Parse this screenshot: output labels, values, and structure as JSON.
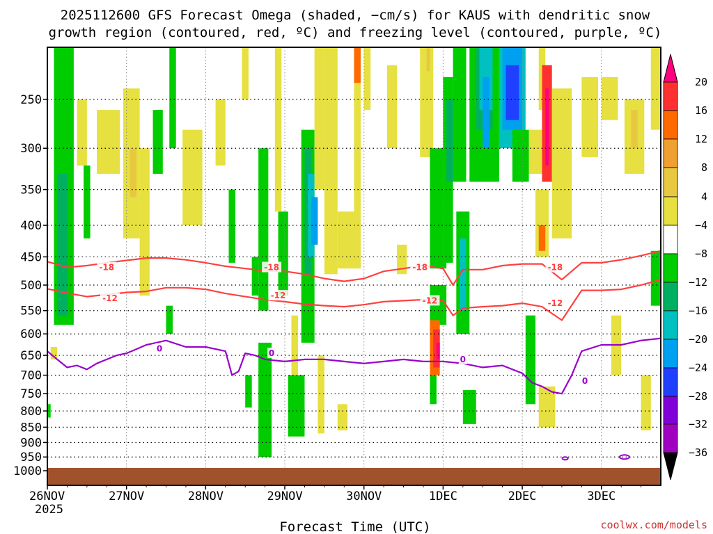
{
  "chart_data": {
    "type": "heatmap",
    "title_line1": "2025112600 GFS Forecast Omega (shaded, −cm/s) for KAUS with dendritic snow",
    "title_line2": "growth region (contoured, red, ºC) and freezing level (contoured, purple, ºC)",
    "xlabel": "Forecast Time (UTC)",
    "credit": "coolwx.com/models",
    "x_ticks": [
      "26NOV",
      "27NOV",
      "28NOV",
      "29NOV",
      "30NOV",
      "1DEC",
      "2DEC",
      "3DEC"
    ],
    "x_tick_year": "2025",
    "x_range_hours": [
      0,
      186
    ],
    "y_ticks": [
      "250",
      "300",
      "350",
      "400",
      "450",
      "500",
      "550",
      "600",
      "650",
      "700",
      "750",
      "800",
      "850",
      "900",
      "950",
      "1000"
    ],
    "y_range_hpa": [
      200,
      1000
    ],
    "colorbar_labels": [
      "20",
      "16",
      "12",
      "8",
      "4",
      "−4",
      "−8",
      "−12",
      "−16",
      "−20",
      "−24",
      "−28",
      "−32",
      "−36"
    ],
    "colorbar_colors": [
      "#ff0080",
      "#ff3030",
      "#ff6a00",
      "#f0a030",
      "#e8c840",
      "#e6e040",
      "#ffffff",
      "#00cc00",
      "#00b060",
      "#00c0c0",
      "#00a0f0",
      "#2040ff",
      "#8000d8",
      "#a000c0",
      "#a8a8a8",
      "#000000"
    ],
    "contours": {
      "minus18": {
        "label": "-18",
        "color": "#ff4040",
        "x": [
          0,
          6,
          12,
          18,
          24,
          30,
          36,
          42,
          48,
          54,
          60,
          66,
          72,
          78,
          84,
          90,
          96,
          102,
          108,
          114,
          120,
          123,
          126,
          132,
          138,
          144,
          150,
          156,
          162,
          168,
          174,
          180,
          186
        ],
        "p": [
          458,
          468,
          465,
          460,
          456,
          452,
          452,
          455,
          460,
          466,
          470,
          474,
          475,
          480,
          488,
          493,
          488,
          475,
          470,
          465,
          470,
          500,
          472,
          472,
          465,
          462,
          462,
          490,
          460,
          460,
          455,
          448,
          440
        ]
      },
      "minus12": {
        "label": "-12",
        "color": "#ff4040",
        "x": [
          0,
          6,
          12,
          18,
          24,
          30,
          36,
          42,
          48,
          54,
          60,
          66,
          72,
          78,
          84,
          90,
          96,
          102,
          108,
          114,
          120,
          123,
          126,
          132,
          138,
          144,
          150,
          156,
          162,
          168,
          174,
          180,
          186
        ],
        "p": [
          507,
          515,
          522,
          518,
          514,
          512,
          505,
          505,
          508,
          516,
          522,
          528,
          532,
          537,
          540,
          542,
          538,
          532,
          530,
          528,
          530,
          560,
          545,
          542,
          540,
          535,
          542,
          570,
          510,
          510,
          508,
          500,
          490
        ]
      },
      "freezing_0": {
        "label": "0",
        "color": "#9900cc",
        "x": [
          0,
          3,
          6,
          9,
          12,
          15,
          18,
          21,
          24,
          27,
          30,
          33,
          36,
          42,
          48,
          54,
          56,
          58,
          60,
          63,
          66,
          72,
          78,
          84,
          90,
          96,
          102,
          108,
          114,
          120,
          126,
          132,
          138,
          144,
          147,
          150,
          153,
          156,
          159,
          162,
          168,
          174,
          180,
          186
        ],
        "p": [
          640,
          660,
          680,
          675,
          685,
          670,
          660,
          650,
          645,
          635,
          625,
          620,
          615,
          630,
          630,
          640,
          700,
          690,
          645,
          650,
          660,
          665,
          660,
          660,
          665,
          670,
          665,
          660,
          665,
          665,
          670,
          680,
          675,
          695,
          720,
          730,
          745,
          750,
          700,
          640,
          625,
          625,
          615,
          610
        ]
      }
    },
    "contour_labels": [
      {
        "text": "-18",
        "x": 18,
        "p": 468,
        "color": "#ff4040"
      },
      {
        "text": "-18",
        "x": 68,
        "p": 468,
        "color": "#ff4040"
      },
      {
        "text": "-18",
        "x": 113,
        "p": 468,
        "color": "#ff4040"
      },
      {
        "text": "-18",
        "x": 154,
        "p": 468,
        "color": "#ff4040"
      },
      {
        "text": "-12",
        "x": 19,
        "p": 525,
        "color": "#ff4040"
      },
      {
        "text": "-12",
        "x": 70,
        "p": 520,
        "color": "#ff4040"
      },
      {
        "text": "-12",
        "x": 116,
        "p": 530,
        "color": "#ff4040"
      },
      {
        "text": "-12",
        "x": 154,
        "p": 535,
        "color": "#ff4040"
      },
      {
        "text": "0",
        "x": 34,
        "p": 634,
        "color": "#9900cc"
      },
      {
        "text": "0",
        "x": 68,
        "p": 645,
        "color": "#9900cc"
      },
      {
        "text": "0",
        "x": 126,
        "p": 660,
        "color": "#9900cc"
      },
      {
        "text": "0",
        "x": 163,
        "p": 715,
        "color": "#9900cc"
      }
    ],
    "shaded_regions": [
      {
        "c": "#00cc00",
        "x0": 2,
        "x1": 8,
        "p0": 200,
        "p1": 580
      },
      {
        "c": "#00b060",
        "x0": 3,
        "x1": 6,
        "p0": 330,
        "p1": 560
      },
      {
        "c": "#e6e040",
        "x0": 1,
        "x1": 3,
        "p0": 630,
        "p1": 660
      },
      {
        "c": "#00cc00",
        "x0": 0,
        "x1": 1,
        "p0": 780,
        "p1": 820
      },
      {
        "c": "#e6e040",
        "x0": 9,
        "x1": 12,
        "p0": 250,
        "p1": 320
      },
      {
        "c": "#00cc00",
        "x0": 11,
        "x1": 13,
        "p0": 320,
        "p1": 420
      },
      {
        "c": "#e6e040",
        "x0": 15,
        "x1": 22,
        "p0": 260,
        "p1": 330
      },
      {
        "c": "#e6e040",
        "x0": 23,
        "x1": 28,
        "p0": 240,
        "p1": 420
      },
      {
        "c": "#e8c840",
        "x0": 25,
        "x1": 27,
        "p0": 300,
        "p1": 360
      },
      {
        "c": "#e6e040",
        "x0": 28,
        "x1": 31,
        "p0": 300,
        "p1": 520
      },
      {
        "c": "#00cc00",
        "x0": 32,
        "x1": 35,
        "p0": 260,
        "p1": 330
      },
      {
        "c": "#00cc00",
        "x0": 37,
        "x1": 39,
        "p0": 200,
        "p1": 300
      },
      {
        "c": "#e6e040",
        "x0": 41,
        "x1": 47,
        "p0": 280,
        "p1": 400
      },
      {
        "c": "#00cc00",
        "x0": 36,
        "x1": 38,
        "p0": 540,
        "p1": 600
      },
      {
        "c": "#e6e040",
        "x0": 51,
        "x1": 54,
        "p0": 250,
        "p1": 320
      },
      {
        "c": "#00cc00",
        "x0": 55,
        "x1": 57,
        "p0": 350,
        "p1": 460
      },
      {
        "c": "#e6e040",
        "x0": 59,
        "x1": 61,
        "p0": 200,
        "p1": 250
      },
      {
        "c": "#00cc00",
        "x0": 60,
        "x1": 62,
        "p0": 700,
        "p1": 790
      },
      {
        "c": "#00cc00",
        "x0": 62,
        "x1": 64,
        "p0": 450,
        "p1": 520
      },
      {
        "c": "#00cc00",
        "x0": 64,
        "x1": 67,
        "p0": 300,
        "p1": 550
      },
      {
        "c": "#00cc00",
        "x0": 64,
        "x1": 68,
        "p0": 620,
        "p1": 950
      },
      {
        "c": "#00cc00",
        "x0": 70,
        "x1": 73,
        "p0": 380,
        "p1": 520
      },
      {
        "c": "#e6e040",
        "x0": 69,
        "x1": 71,
        "p0": 200,
        "p1": 380
      },
      {
        "c": "#e6e040",
        "x0": 74,
        "x1": 76,
        "p0": 560,
        "p1": 700
      },
      {
        "c": "#00cc00",
        "x0": 77,
        "x1": 81,
        "p0": 280,
        "p1": 620
      },
      {
        "c": "#00b060",
        "x0": 78,
        "x1": 80,
        "p0": 300,
        "p1": 480
      },
      {
        "c": "#00c0c0",
        "x0": 79,
        "x1": 81,
        "p0": 330,
        "p1": 450
      },
      {
        "c": "#00a0f0",
        "x0": 80,
        "x1": 82,
        "p0": 360,
        "p1": 430
      },
      {
        "c": "#00cc00",
        "x0": 73,
        "x1": 78,
        "p0": 700,
        "p1": 880
      },
      {
        "c": "#e6e040",
        "x0": 81,
        "x1": 84,
        "p0": 200,
        "p1": 350
      },
      {
        "c": "#e6e040",
        "x0": 84,
        "x1": 88,
        "p0": 200,
        "p1": 480
      },
      {
        "c": "#e6e040",
        "x0": 82,
        "x1": 84,
        "p0": 650,
        "p1": 870
      },
      {
        "c": "#e6e040",
        "x0": 88,
        "x1": 91,
        "p0": 780,
        "p1": 860
      },
      {
        "c": "#e6e040",
        "x0": 88,
        "x1": 93,
        "p0": 380,
        "p1": 470
      },
      {
        "c": "#e6e040",
        "x0": 93,
        "x1": 95,
        "p0": 200,
        "p1": 470
      },
      {
        "c": "#ff6a00",
        "x0": 93,
        "x1": 95,
        "p0": 200,
        "p1": 235
      },
      {
        "c": "#e6e040",
        "x0": 96,
        "x1": 98,
        "p0": 200,
        "p1": 260
      },
      {
        "c": "#e6e040",
        "x0": 103,
        "x1": 106,
        "p0": 220,
        "p1": 300
      },
      {
        "c": "#e6e040",
        "x0": 106,
        "x1": 109,
        "p0": 430,
        "p1": 480
      },
      {
        "c": "#e6e040",
        "x0": 113,
        "x1": 117,
        "p0": 200,
        "p1": 310
      },
      {
        "c": "#e8c840",
        "x0": 115,
        "x1": 116,
        "p0": 200,
        "p1": 225
      },
      {
        "c": "#00cc00",
        "x0": 116,
        "x1": 121,
        "p0": 300,
        "p1": 470
      },
      {
        "c": "#00cc00",
        "x0": 116,
        "x1": 121,
        "p0": 500,
        "p1": 580
      },
      {
        "c": "#ff6a00",
        "x0": 116,
        "x1": 119,
        "p0": 570,
        "p1": 700
      },
      {
        "c": "#ff3030",
        "x0": 117,
        "x1": 119,
        "p0": 590,
        "p1": 680
      },
      {
        "c": "#ff0080",
        "x0": 118,
        "x1": 119,
        "p0": 620,
        "p1": 660
      },
      {
        "c": "#00cc00",
        "x0": 116,
        "x1": 118,
        "p0": 700,
        "p1": 780
      },
      {
        "c": "#00cc00",
        "x0": 120,
        "x1": 123,
        "p0": 230,
        "p1": 460
      },
      {
        "c": "#00b060",
        "x0": 121,
        "x1": 123,
        "p0": 250,
        "p1": 340
      },
      {
        "c": "#00cc00",
        "x0": 123,
        "x1": 127,
        "p0": 200,
        "p1": 340
      },
      {
        "c": "#00cc00",
        "x0": 124,
        "x1": 128,
        "p0": 380,
        "p1": 600
      },
      {
        "c": "#00c0c0",
        "x0": 125,
        "x1": 127,
        "p0": 420,
        "p1": 550
      },
      {
        "c": "#00cc00",
        "x0": 126,
        "x1": 130,
        "p0": 740,
        "p1": 840
      },
      {
        "c": "#00cc00",
        "x0": 128,
        "x1": 137,
        "p0": 200,
        "p1": 340
      },
      {
        "c": "#00b060",
        "x0": 130,
        "x1": 135,
        "p0": 200,
        "p1": 280
      },
      {
        "c": "#00c0c0",
        "x0": 131,
        "x1": 135,
        "p0": 200,
        "p1": 260
      },
      {
        "c": "#00a0f0",
        "x0": 132,
        "x1": 134,
        "p0": 230,
        "p1": 300
      },
      {
        "c": "#00c0c0",
        "x0": 137,
        "x1": 145,
        "p0": 200,
        "p1": 300
      },
      {
        "c": "#00a0f0",
        "x0": 138,
        "x1": 144,
        "p0": 200,
        "p1": 280
      },
      {
        "c": "#2040ff",
        "x0": 139,
        "x1": 143,
        "p0": 220,
        "p1": 270
      },
      {
        "c": "#00cc00",
        "x0": 141,
        "x1": 146,
        "p0": 280,
        "p1": 340
      },
      {
        "c": "#00cc00",
        "x0": 145,
        "x1": 148,
        "p0": 560,
        "p1": 780
      },
      {
        "c": "#e6e040",
        "x0": 146,
        "x1": 150,
        "p0": 280,
        "p1": 330
      },
      {
        "c": "#e6e040",
        "x0": 148,
        "x1": 152,
        "p0": 350,
        "p1": 450
      },
      {
        "c": "#ff6a00",
        "x0": 149,
        "x1": 151,
        "p0": 400,
        "p1": 440
      },
      {
        "c": "#e6e040",
        "x0": 149,
        "x1": 151,
        "p0": 200,
        "p1": 260
      },
      {
        "c": "#ff3030",
        "x0": 150,
        "x1": 153,
        "p0": 220,
        "p1": 340
      },
      {
        "c": "#ff0080",
        "x0": 151,
        "x1": 152,
        "p0": 240,
        "p1": 320
      },
      {
        "c": "#e6e040",
        "x0": 153,
        "x1": 159,
        "p0": 240,
        "p1": 420
      },
      {
        "c": "#e6e040",
        "x0": 149,
        "x1": 154,
        "p0": 730,
        "p1": 850
      },
      {
        "c": "#e6e040",
        "x0": 162,
        "x1": 167,
        "p0": 230,
        "p1": 310
      },
      {
        "c": "#e6e040",
        "x0": 168,
        "x1": 173,
        "p0": 230,
        "p1": 270
      },
      {
        "c": "#e6e040",
        "x0": 175,
        "x1": 181,
        "p0": 250,
        "p1": 330
      },
      {
        "c": "#e8c840",
        "x0": 177,
        "x1": 179,
        "p0": 260,
        "p1": 300
      },
      {
        "c": "#e6e040",
        "x0": 171,
        "x1": 174,
        "p0": 560,
        "p1": 700
      },
      {
        "c": "#e6e040",
        "x0": 180,
        "x1": 183,
        "p0": 700,
        "p1": 860
      },
      {
        "c": "#e6e040",
        "x0": 183,
        "x1": 186,
        "p0": 200,
        "p1": 280
      },
      {
        "c": "#00cc00",
        "x0": 183,
        "x1": 186,
        "p0": 440,
        "p1": 540
      }
    ]
  }
}
